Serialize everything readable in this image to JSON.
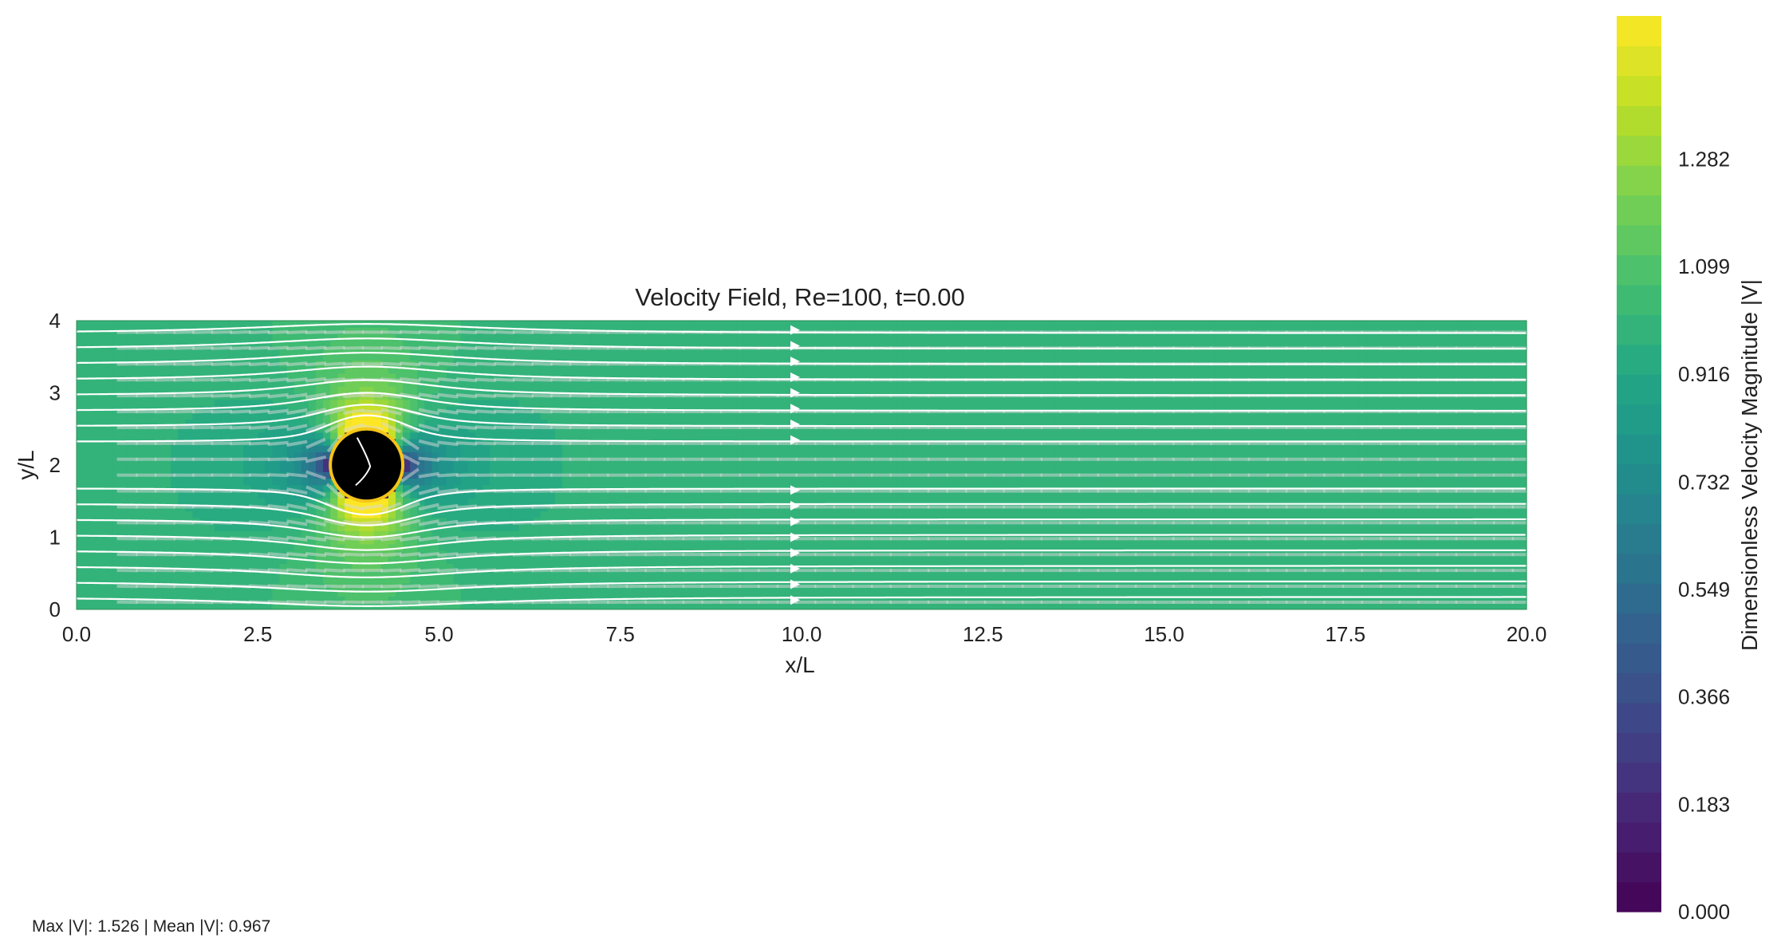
{
  "chart_data": {
    "type": "heatmap",
    "title": "Velocity Field, Re=100, t=0.00",
    "xlabel": "x/L",
    "ylabel": "y/L",
    "xlim": [
      0,
      20
    ],
    "ylim": [
      0,
      4
    ],
    "xticks": [
      "0.0",
      "2.5",
      "5.0",
      "7.5",
      "10.0",
      "12.5",
      "15.0",
      "17.5",
      "20.0"
    ],
    "yticks": [
      "0",
      "1",
      "2",
      "3",
      "4"
    ],
    "grid": false,
    "colormap": "viridis",
    "freestream_velocity": 1.0,
    "obstacle": {
      "shape": "circle",
      "center": [
        4,
        2
      ],
      "radius": 0.5,
      "fill": "#000000",
      "edge": "#f5c518"
    },
    "colorbar": {
      "label": "Dimensionless Velocity Magnitude |V|",
      "range": [
        0,
        1.526
      ],
      "ticks": [
        "0.000",
        "0.183",
        "0.366",
        "0.549",
        "0.732",
        "0.916",
        "1.099",
        "1.282"
      ],
      "levels": 30
    },
    "streamlines": {
      "color": "#ffffff",
      "count": 18
    },
    "vectors": {
      "color": "#d9d9d9"
    }
  },
  "stats": "Max |V|: 1.526 | Mean |V|: 0.967"
}
